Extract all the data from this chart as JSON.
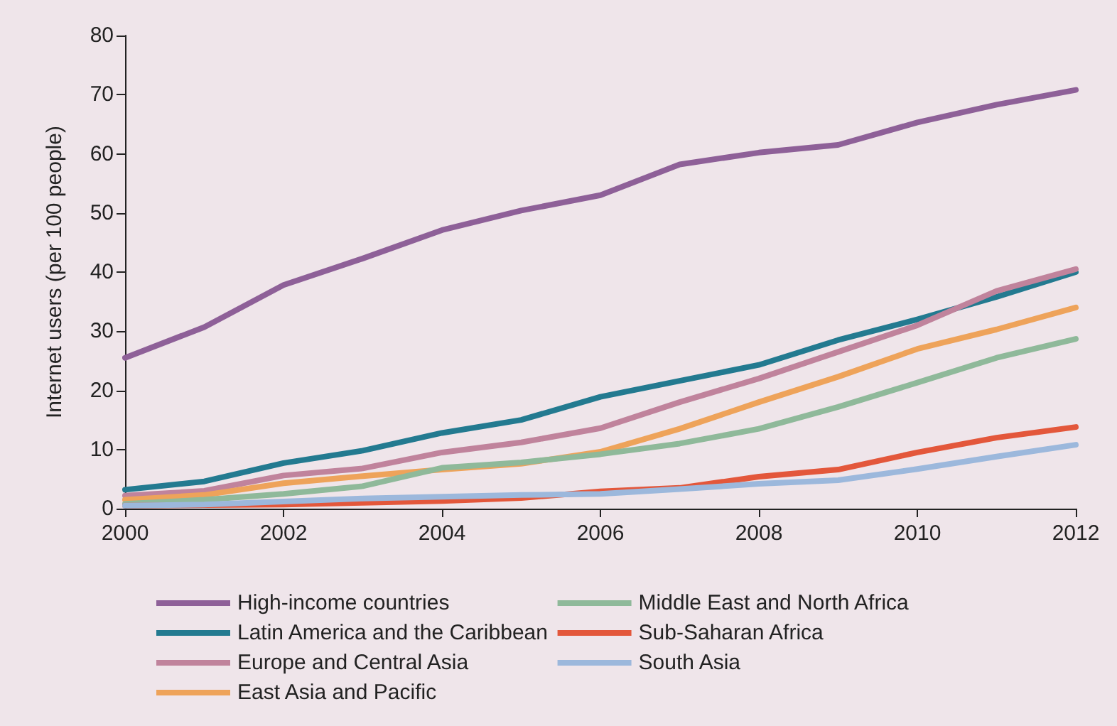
{
  "chart_data": {
    "type": "line",
    "ylabel": "Internet users (per 100 people)",
    "x": [
      2000,
      2001,
      2002,
      2003,
      2004,
      2005,
      2006,
      2007,
      2008,
      2009,
      2010,
      2011,
      2012
    ],
    "xlim": [
      2000,
      2012
    ],
    "xticks": [
      2000,
      2002,
      2004,
      2006,
      2008,
      2010,
      2012
    ],
    "ylim": [
      0,
      80
    ],
    "yticks": [
      0,
      10,
      20,
      30,
      40,
      50,
      60,
      70,
      80
    ],
    "grid": false,
    "legend": "bottom",
    "marker": "none",
    "line_style": "solid",
    "series": [
      {
        "name": "High-income countries",
        "color": "#8e6098",
        "values": [
          25.5,
          30.7,
          37.8,
          42.3,
          47.1,
          50.4,
          53,
          58.2,
          60.2,
          61.5,
          65.3,
          68.3,
          70.8
        ]
      },
      {
        "name": "Latin America and the Caribbean",
        "color": "#237a90",
        "values": [
          3.2,
          4.6,
          7.7,
          9.8,
          12.8,
          15.0,
          18.9,
          21.6,
          24.3,
          28.5,
          32,
          35.8,
          40
        ]
      },
      {
        "name": "Europe and Central Asia",
        "color": "#c0839c",
        "values": [
          2.2,
          3.0,
          5.6,
          6.8,
          9.5,
          11.2,
          13.6,
          18,
          22,
          26.5,
          31,
          36.8,
          40.5
        ]
      },
      {
        "name": "East Asia and Pacific",
        "color": "#eea35a",
        "values": [
          1.5,
          2.3,
          4.3,
          5.5,
          6.6,
          7.6,
          9.6,
          13.5,
          18,
          22.3,
          27,
          30.3,
          34
        ]
      },
      {
        "name": "Middle East and North Africa",
        "color": "#8fb99a",
        "values": [
          0.8,
          1.5,
          2.5,
          3.8,
          6.9,
          7.8,
          9.2,
          11,
          13.5,
          17.2,
          21.3,
          25.5,
          28.7
        ]
      },
      {
        "name": "Sub-Saharan Africa",
        "color": "#e3573b",
        "values": [
          0.5,
          0.6,
          0.7,
          1.0,
          1.3,
          1.8,
          2.9,
          3.5,
          5.4,
          6.6,
          9.5,
          12,
          13.8
        ]
      },
      {
        "name": "South Asia",
        "color": "#9cb8dc",
        "values": [
          0.5,
          0.7,
          1.2,
          1.7,
          2.0,
          2.3,
          2.5,
          3.3,
          4.2,
          4.8,
          6.7,
          8.8,
          10.8
        ]
      }
    ]
  }
}
